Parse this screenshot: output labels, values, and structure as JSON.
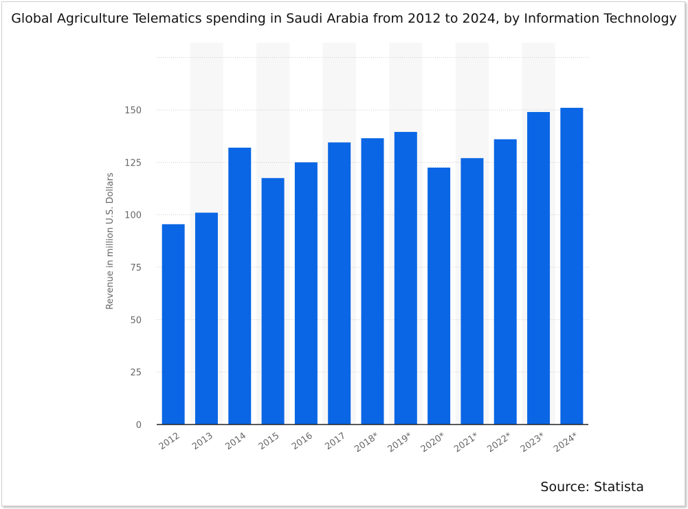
{
  "chart_data": {
    "type": "bar",
    "title": "Global Agriculture Telematics spending in Saudi Arabia from 2012 to 2024, by Information Technology",
    "ylabel": "Revenue in million U.S. Dollars",
    "xlabel": "",
    "categories": [
      "2012",
      "2013",
      "2014",
      "2015",
      "2016",
      "2017",
      "2018*",
      "2019*",
      "2020*",
      "2021*",
      "2022*",
      "2023*",
      "2024*"
    ],
    "values": [
      95.5,
      101,
      132,
      117.5,
      125,
      134.5,
      136.5,
      139.5,
      122.5,
      127,
      136,
      149,
      151
    ],
    "ylim": [
      0,
      175
    ],
    "yticks": [
      0,
      25,
      50,
      75,
      100,
      125,
      150
    ],
    "grid": true,
    "bar_color": "#0a66e4"
  },
  "source": "Source: Statista"
}
